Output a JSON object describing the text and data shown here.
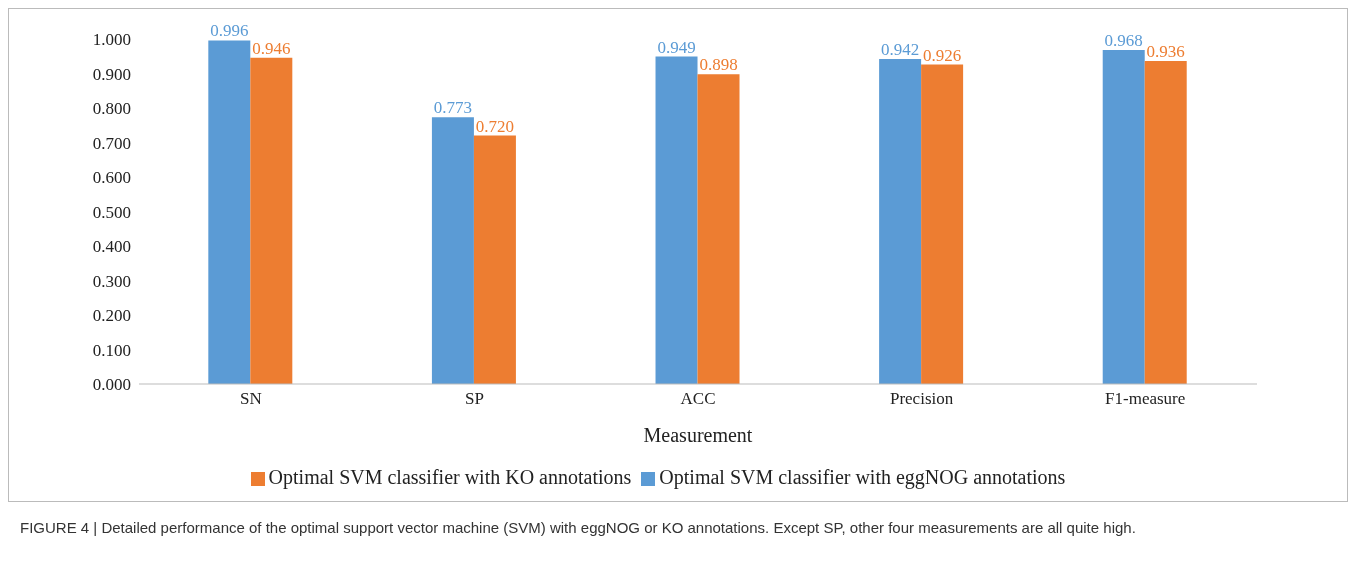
{
  "chart_data": {
    "type": "bar",
    "categories": [
      "SN",
      "SP",
      "ACC",
      "Precision",
      "F1-measure"
    ],
    "series": [
      {
        "name": "Optimal SVM classifier with eggNOG annotations",
        "color": "#5b9bd5",
        "values": [
          0.996,
          0.773,
          0.949,
          0.942,
          0.968
        ],
        "value_labels": [
          "0.996",
          "0.773",
          "0.949",
          "0.942",
          "0.968"
        ]
      },
      {
        "name": "Optimal SVM classifier with KO annotations",
        "color": "#ed7d31",
        "values": [
          0.946,
          0.72,
          0.898,
          0.926,
          0.936
        ],
        "value_labels": [
          "0.946",
          "0.720",
          "0.898",
          "0.926",
          "0.936"
        ]
      }
    ],
    "xlabel": "Measurement",
    "ylim": [
      0,
      1
    ],
    "yticks": [
      {
        "value": 0,
        "label": "0.000"
      },
      {
        "value": 0.1,
        "label": "0.100"
      },
      {
        "value": 0.2,
        "label": "0.200"
      },
      {
        "value": 0.3,
        "label": "0.300"
      },
      {
        "value": 0.4,
        "label": "0.400"
      },
      {
        "value": 0.5,
        "label": "0.500"
      },
      {
        "value": 0.6,
        "label": "0.600"
      },
      {
        "value": 0.7,
        "label": "0.700"
      },
      {
        "value": 0.8,
        "label": "0.800"
      },
      {
        "value": 0.9,
        "label": "0.900"
      },
      {
        "value": 1,
        "label": "1.000"
      }
    ],
    "grid": false,
    "legend": "bottom",
    "annotations": [
      "FIGURE 4 | Detailed performance of the optimal support vector machine (SVM) with eggNOG or KO annotations. Except SP, other four measurements are all quite high."
    ]
  }
}
